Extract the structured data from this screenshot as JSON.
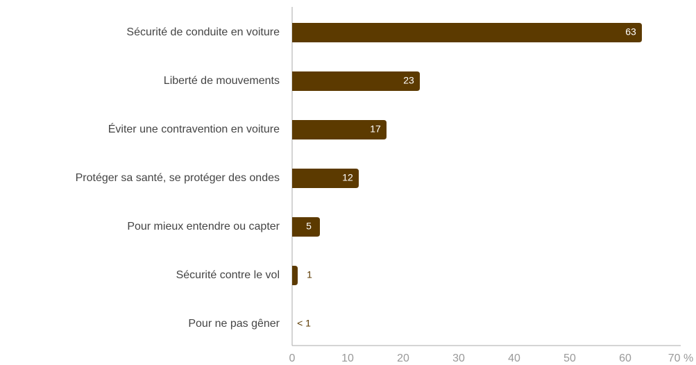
{
  "chart_data": {
    "type": "bar",
    "orientation": "horizontal",
    "categories": [
      "Sécurité de conduite en voiture",
      "Liberté de mouvements",
      "Éviter une contravention en voiture",
      "Protéger sa santé, se protéger des ondes",
      "Pour mieux entendre ou capter",
      "Sécurité contre le vol",
      "Pour ne pas gêner"
    ],
    "values": [
      63,
      23,
      17,
      12,
      5,
      1,
      0
    ],
    "value_labels": [
      "63",
      "23",
      "17",
      "12",
      "5",
      "1",
      "< 1"
    ],
    "color": "#5c3a00",
    "xlim": [
      0,
      70
    ],
    "xticks": [
      0,
      10,
      20,
      30,
      40,
      50,
      60,
      {
        "value": 70,
        "label": "70 %"
      }
    ],
    "grid": false
  }
}
